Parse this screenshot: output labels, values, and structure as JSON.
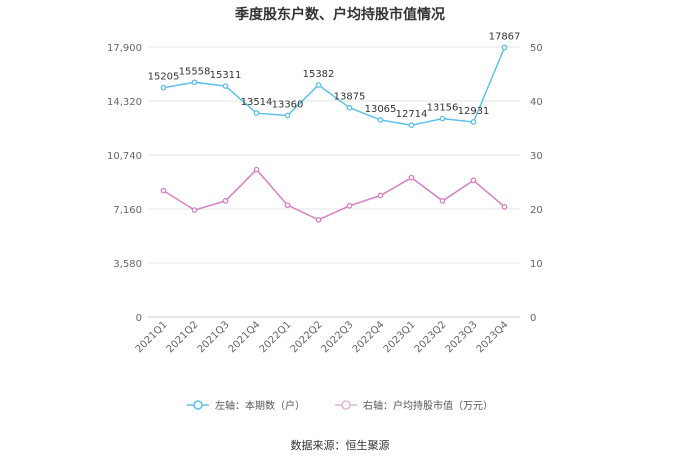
{
  "chart_data": {
    "type": "line",
    "title": "季度股东户数、户均持股市值情况",
    "categories": [
      "2021Q1",
      "2021Q2",
      "2021Q3",
      "2021Q4",
      "2022Q1",
      "2022Q2",
      "2022Q3",
      "2022Q4",
      "2023Q1",
      "2023Q2",
      "2023Q3",
      "2023Q4"
    ],
    "left_axis": {
      "ylim": [
        0,
        17900
      ],
      "ticks": [
        "0",
        "3,580",
        "7,160",
        "10,740",
        "14,320",
        "17,900"
      ]
    },
    "right_axis": {
      "ylim": [
        0,
        50
      ],
      "ticks": [
        "0",
        "10",
        "20",
        "30",
        "40",
        "50"
      ]
    },
    "series": [
      {
        "name": "左轴：本期数（户）",
        "axis": "left",
        "color": "#5bc0eb",
        "values": [
          15205,
          15558,
          15311,
          13514,
          13360,
          15382,
          13875,
          13065,
          12714,
          13156,
          12931,
          17867
        ],
        "labels": [
          "15205",
          "15558",
          "15311",
          "13514",
          "13360",
          "15382",
          "13875",
          "13065",
          "12714",
          "13156",
          "12931",
          "17867"
        ]
      },
      {
        "name": "右轴：户均持股市值（万元）",
        "axis": "right",
        "color": "#d77fc3",
        "values": [
          23.4,
          19.8,
          21.5,
          27.3,
          20.7,
          18.0,
          20.6,
          22.5,
          25.8,
          21.5,
          25.3,
          20.4
        ]
      }
    ],
    "grid": true,
    "legend_position": "bottom"
  },
  "source_note": "数据来源：恒生聚源"
}
